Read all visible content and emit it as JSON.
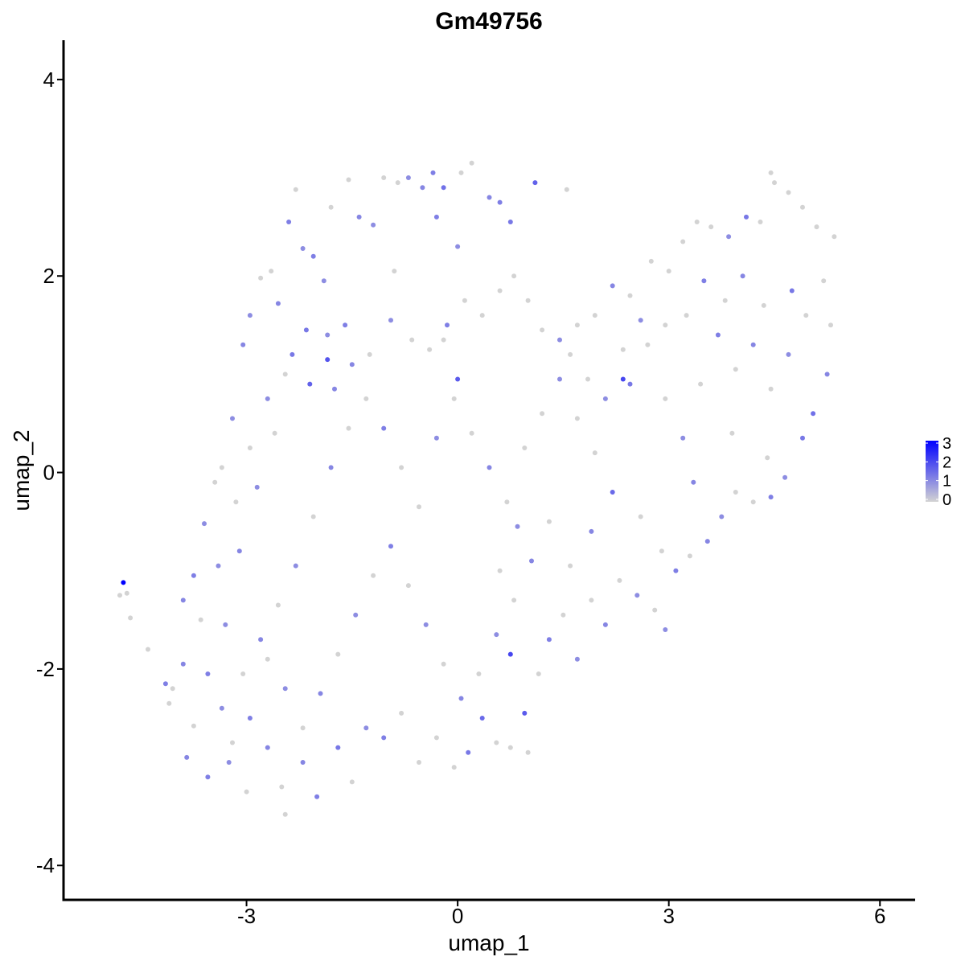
{
  "chart_data": {
    "type": "scatter",
    "title": "Gm49756",
    "xlabel": "umap_1",
    "ylabel": "umap_2",
    "xlim": [
      -5.6,
      6.5
    ],
    "ylim": [
      -4.35,
      4.4
    ],
    "x_ticks": [
      -3,
      0,
      3,
      6
    ],
    "x_tick_labels": [
      "-3",
      "0",
      "3",
      "6"
    ],
    "y_ticks": [
      -4,
      -2,
      0,
      2,
      4
    ],
    "y_tick_labels": [
      "-4",
      "-2",
      "0",
      "2",
      "4"
    ],
    "grid": false,
    "legend": {
      "placement": "right",
      "type": "colorbar",
      "min": 0,
      "max": 3,
      "ticks": [
        0,
        1,
        2,
        3
      ],
      "tick_labels": [
        "0",
        "1",
        "2",
        "3"
      ],
      "low_color": "#d3d3d3",
      "high_color": "#0000ff"
    },
    "points": [
      {
        "x": -4.75,
        "y": -1.12,
        "v": 3.0
      },
      {
        "x": -4.8,
        "y": -1.25,
        "v": 0
      },
      {
        "x": -4.7,
        "y": -1.23,
        "v": 0
      },
      {
        "x": -4.65,
        "y": -1.48,
        "v": 0
      },
      {
        "x": -4.4,
        "y": -1.8,
        "v": 0
      },
      {
        "x": -4.15,
        "y": -2.15,
        "v": 1.2
      },
      {
        "x": -4.05,
        "y": -2.2,
        "v": 0
      },
      {
        "x": -3.9,
        "y": -1.3,
        "v": 1.1
      },
      {
        "x": -3.75,
        "y": -1.05,
        "v": 1.2
      },
      {
        "x": -3.6,
        "y": -0.52,
        "v": 1.0
      },
      {
        "x": -3.45,
        "y": -0.1,
        "v": 0
      },
      {
        "x": -3.35,
        "y": 0.05,
        "v": 0
      },
      {
        "x": -3.2,
        "y": 0.55,
        "v": 1.0
      },
      {
        "x": -3.05,
        "y": 1.3,
        "v": 1.1
      },
      {
        "x": -2.95,
        "y": 1.6,
        "v": 1.0
      },
      {
        "x": -2.8,
        "y": 1.98,
        "v": 0
      },
      {
        "x": -2.65,
        "y": 2.05,
        "v": 0
      },
      {
        "x": -2.55,
        "y": 1.72,
        "v": 1.1
      },
      {
        "x": -2.4,
        "y": 2.55,
        "v": 1.2
      },
      {
        "x": -2.3,
        "y": 2.88,
        "v": 0
      },
      {
        "x": -2.2,
        "y": 2.28,
        "v": 1.0
      },
      {
        "x": -2.05,
        "y": 2.2,
        "v": 1.2
      },
      {
        "x": -1.9,
        "y": 1.95,
        "v": 1.0
      },
      {
        "x": -1.8,
        "y": 2.7,
        "v": 0
      },
      {
        "x": -1.55,
        "y": 2.98,
        "v": 0
      },
      {
        "x": -1.4,
        "y": 2.6,
        "v": 1.1
      },
      {
        "x": -1.2,
        "y": 2.52,
        "v": 1.0
      },
      {
        "x": -1.05,
        "y": 3.0,
        "v": 0
      },
      {
        "x": -0.85,
        "y": 2.95,
        "v": 0
      },
      {
        "x": -0.7,
        "y": 3.0,
        "v": 1.0
      },
      {
        "x": -0.5,
        "y": 2.9,
        "v": 1.1
      },
      {
        "x": -0.35,
        "y": 3.05,
        "v": 1.2
      },
      {
        "x": -0.2,
        "y": 2.9,
        "v": 1.4
      },
      {
        "x": 0.05,
        "y": 3.05,
        "v": 0
      },
      {
        "x": 0.2,
        "y": 3.15,
        "v": 0
      },
      {
        "x": 0.45,
        "y": 2.8,
        "v": 1.1
      },
      {
        "x": 0.6,
        "y": 2.75,
        "v": 1.2
      },
      {
        "x": 0.75,
        "y": 2.55,
        "v": 1.3
      },
      {
        "x": 1.1,
        "y": 2.95,
        "v": 1.6
      },
      {
        "x": 1.55,
        "y": 2.88,
        "v": 0
      },
      {
        "x": 0.0,
        "y": 2.3,
        "v": 1.0
      },
      {
        "x": -0.3,
        "y": 2.6,
        "v": 1.2
      },
      {
        "x": -0.9,
        "y": 2.05,
        "v": 0
      },
      {
        "x": -1.6,
        "y": 1.5,
        "v": 1.2
      },
      {
        "x": -1.75,
        "y": 0.85,
        "v": 1.1
      },
      {
        "x": -2.1,
        "y": 0.9,
        "v": 1.6
      },
      {
        "x": -2.35,
        "y": 1.2,
        "v": 1.3
      },
      {
        "x": -2.6,
        "y": 0.4,
        "v": 0
      },
      {
        "x": -2.85,
        "y": -0.15,
        "v": 1.0
      },
      {
        "x": -3.1,
        "y": -0.8,
        "v": 1.1
      },
      {
        "x": -3.3,
        "y": -1.55,
        "v": 1.0
      },
      {
        "x": -3.55,
        "y": -2.05,
        "v": 1.2
      },
      {
        "x": -3.75,
        "y": -2.58,
        "v": 0
      },
      {
        "x": -3.85,
        "y": -2.9,
        "v": 1.1
      },
      {
        "x": -3.55,
        "y": -3.1,
        "v": 1.2
      },
      {
        "x": -3.25,
        "y": -2.95,
        "v": 1.0
      },
      {
        "x": -3.0,
        "y": -3.25,
        "v": 0
      },
      {
        "x": -2.7,
        "y": -2.8,
        "v": 1.1
      },
      {
        "x": -2.5,
        "y": -3.2,
        "v": 0
      },
      {
        "x": -2.45,
        "y": -3.48,
        "v": 0
      },
      {
        "x": -2.2,
        "y": -2.95,
        "v": 1.1
      },
      {
        "x": -2.0,
        "y": -3.3,
        "v": 1.2
      },
      {
        "x": -1.7,
        "y": -2.8,
        "v": 1.3
      },
      {
        "x": -1.5,
        "y": -3.15,
        "v": 0
      },
      {
        "x": -1.3,
        "y": -2.6,
        "v": 1.0
      },
      {
        "x": -1.05,
        "y": -2.7,
        "v": 1.2
      },
      {
        "x": -0.8,
        "y": -2.45,
        "v": 0
      },
      {
        "x": -0.55,
        "y": -2.95,
        "v": 0
      },
      {
        "x": -0.3,
        "y": -2.7,
        "v": 0
      },
      {
        "x": -0.05,
        "y": -3.0,
        "v": 0
      },
      {
        "x": 0.15,
        "y": -2.85,
        "v": 1.3
      },
      {
        "x": 0.35,
        "y": -2.5,
        "v": 1.5
      },
      {
        "x": 0.55,
        "y": -2.75,
        "v": 0
      },
      {
        "x": 0.75,
        "y": -2.8,
        "v": 0
      },
      {
        "x": 0.95,
        "y": -2.45,
        "v": 1.7
      },
      {
        "x": 1.0,
        "y": -2.85,
        "v": 0
      },
      {
        "x": 1.15,
        "y": -2.05,
        "v": 0
      },
      {
        "x": 1.3,
        "y": -1.7,
        "v": 1.2
      },
      {
        "x": 1.5,
        "y": -1.45,
        "v": 0
      },
      {
        "x": 1.7,
        "y": -1.9,
        "v": 1.0
      },
      {
        "x": 1.9,
        "y": -1.3,
        "v": 0
      },
      {
        "x": 2.1,
        "y": -1.55,
        "v": 1.1
      },
      {
        "x": 2.3,
        "y": -1.1,
        "v": 0
      },
      {
        "x": 2.55,
        "y": -1.25,
        "v": 1.0
      },
      {
        "x": 2.8,
        "y": -1.4,
        "v": 0
      },
      {
        "x": 2.95,
        "y": -1.6,
        "v": 1.0
      },
      {
        "x": 3.1,
        "y": -1.0,
        "v": 1.2
      },
      {
        "x": 3.3,
        "y": -0.85,
        "v": 0
      },
      {
        "x": 3.55,
        "y": -0.7,
        "v": 1.1
      },
      {
        "x": 3.75,
        "y": -0.45,
        "v": 1.0
      },
      {
        "x": 3.95,
        "y": -0.2,
        "v": 0
      },
      {
        "x": 4.2,
        "y": -0.3,
        "v": 0
      },
      {
        "x": 4.45,
        "y": -0.25,
        "v": 1.2
      },
      {
        "x": 4.65,
        "y": -0.05,
        "v": 1.0
      },
      {
        "x": 4.9,
        "y": 0.35,
        "v": 1.3
      },
      {
        "x": 5.05,
        "y": 0.6,
        "v": 1.4
      },
      {
        "x": 5.25,
        "y": 1.0,
        "v": 1.1
      },
      {
        "x": 5.3,
        "y": 1.5,
        "v": 0
      },
      {
        "x": 5.2,
        "y": 1.95,
        "v": 0
      },
      {
        "x": 5.35,
        "y": 2.4,
        "v": 0
      },
      {
        "x": 5.1,
        "y": 2.5,
        "v": 0
      },
      {
        "x": 4.9,
        "y": 2.7,
        "v": 0
      },
      {
        "x": 4.7,
        "y": 2.85,
        "v": 0
      },
      {
        "x": 4.5,
        "y": 2.95,
        "v": 0
      },
      {
        "x": 4.45,
        "y": 3.05,
        "v": 0
      },
      {
        "x": 4.3,
        "y": 2.55,
        "v": 0
      },
      {
        "x": 4.1,
        "y": 2.6,
        "v": 1.3
      },
      {
        "x": 3.85,
        "y": 2.4,
        "v": 1.0
      },
      {
        "x": 3.6,
        "y": 2.5,
        "v": 0
      },
      {
        "x": 3.4,
        "y": 2.55,
        "v": 0
      },
      {
        "x": 3.2,
        "y": 2.35,
        "v": 0
      },
      {
        "x": 3.0,
        "y": 2.05,
        "v": 0
      },
      {
        "x": 2.75,
        "y": 2.15,
        "v": 0
      },
      {
        "x": 2.45,
        "y": 1.8,
        "v": 0
      },
      {
        "x": 2.2,
        "y": 1.9,
        "v": 1.1
      },
      {
        "x": 1.95,
        "y": 1.6,
        "v": 0
      },
      {
        "x": 1.7,
        "y": 1.5,
        "v": 0
      },
      {
        "x": 1.45,
        "y": 1.35,
        "v": 1.0
      },
      {
        "x": 1.2,
        "y": 1.45,
        "v": 0
      },
      {
        "x": 1.0,
        "y": 1.75,
        "v": 0
      },
      {
        "x": 0.8,
        "y": 2.0,
        "v": 0
      },
      {
        "x": 0.6,
        "y": 1.85,
        "v": 0
      },
      {
        "x": 0.35,
        "y": 1.6,
        "v": 0
      },
      {
        "x": 0.1,
        "y": 1.75,
        "v": 0
      },
      {
        "x": -0.15,
        "y": 1.5,
        "v": 1.2
      },
      {
        "x": -0.4,
        "y": 1.25,
        "v": 0
      },
      {
        "x": -0.65,
        "y": 1.35,
        "v": 0
      },
      {
        "x": -0.95,
        "y": 1.55,
        "v": 1.0
      },
      {
        "x": -1.25,
        "y": 1.2,
        "v": 0
      },
      {
        "x": -1.5,
        "y": 1.1,
        "v": 1.1
      },
      {
        "x": -1.85,
        "y": 1.4,
        "v": 1.0
      },
      {
        "x": -2.15,
        "y": 1.45,
        "v": 1.3
      },
      {
        "x": -2.45,
        "y": 1.0,
        "v": 0
      },
      {
        "x": -2.7,
        "y": 0.75,
        "v": 1.0
      },
      {
        "x": -2.95,
        "y": 0.25,
        "v": 0
      },
      {
        "x": -3.15,
        "y": -0.3,
        "v": 0
      },
      {
        "x": -3.4,
        "y": -0.95,
        "v": 1.0
      },
      {
        "x": -3.65,
        "y": -1.5,
        "v": 0
      },
      {
        "x": -3.9,
        "y": -1.95,
        "v": 1.1
      },
      {
        "x": -4.1,
        "y": -2.35,
        "v": 0
      },
      {
        "x": -3.35,
        "y": -2.4,
        "v": 1.0
      },
      {
        "x": -3.05,
        "y": -2.05,
        "v": 0
      },
      {
        "x": -2.8,
        "y": -1.7,
        "v": 1.1
      },
      {
        "x": -2.55,
        "y": -1.35,
        "v": 0
      },
      {
        "x": -2.3,
        "y": -0.95,
        "v": 1.0
      },
      {
        "x": -2.05,
        "y": -0.45,
        "v": 0
      },
      {
        "x": -1.8,
        "y": 0.05,
        "v": 1.1
      },
      {
        "x": -1.55,
        "y": 0.45,
        "v": 0
      },
      {
        "x": -1.3,
        "y": 0.75,
        "v": 0
      },
      {
        "x": -1.05,
        "y": 0.45,
        "v": 1.2
      },
      {
        "x": -0.8,
        "y": 0.05,
        "v": 0
      },
      {
        "x": -0.55,
        "y": -0.35,
        "v": 0
      },
      {
        "x": -0.3,
        "y": 0.35,
        "v": 1.0
      },
      {
        "x": -0.05,
        "y": 0.75,
        "v": 0
      },
      {
        "x": 0.2,
        "y": 0.4,
        "v": 0
      },
      {
        "x": 0.45,
        "y": 0.05,
        "v": 1.1
      },
      {
        "x": 0.7,
        "y": -0.3,
        "v": 0
      },
      {
        "x": 0.95,
        "y": 0.25,
        "v": 0
      },
      {
        "x": 1.2,
        "y": 0.6,
        "v": 0
      },
      {
        "x": 1.45,
        "y": 0.95,
        "v": 1.0
      },
      {
        "x": 1.7,
        "y": 0.55,
        "v": 0
      },
      {
        "x": 1.95,
        "y": 0.2,
        "v": 0
      },
      {
        "x": 2.2,
        "y": -0.2,
        "v": 1.5
      },
      {
        "x": 2.45,
        "y": 0.9,
        "v": 1.3
      },
      {
        "x": 2.7,
        "y": 1.3,
        "v": 0
      },
      {
        "x": 2.95,
        "y": 0.75,
        "v": 0
      },
      {
        "x": 3.2,
        "y": 0.35,
        "v": 1.0
      },
      {
        "x": 3.45,
        "y": 0.9,
        "v": 0
      },
      {
        "x": 3.7,
        "y": 1.4,
        "v": 1.2
      },
      {
        "x": 3.95,
        "y": 1.05,
        "v": 0
      },
      {
        "x": 4.2,
        "y": 1.3,
        "v": 1.1
      },
      {
        "x": 4.45,
        "y": 0.85,
        "v": 0
      },
      {
        "x": 4.7,
        "y": 1.2,
        "v": 1.0
      },
      {
        "x": 4.95,
        "y": 1.6,
        "v": 0
      },
      {
        "x": 4.75,
        "y": 1.85,
        "v": 1.3
      },
      {
        "x": 4.35,
        "y": 1.7,
        "v": 0
      },
      {
        "x": 4.05,
        "y": 2.0,
        "v": 1.1
      },
      {
        "x": 3.8,
        "y": 1.75,
        "v": 0
      },
      {
        "x": 3.5,
        "y": 1.95,
        "v": 1.2
      },
      {
        "x": 3.25,
        "y": 1.6,
        "v": 0
      },
      {
        "x": 2.95,
        "y": 1.5,
        "v": 0
      },
      {
        "x": 2.6,
        "y": 1.55,
        "v": 1.0
      },
      {
        "x": 2.35,
        "y": 1.25,
        "v": 0
      },
      {
        "x": 2.1,
        "y": 0.75,
        "v": 1.0
      },
      {
        "x": 1.85,
        "y": 0.95,
        "v": 0
      },
      {
        "x": 1.6,
        "y": 1.2,
        "v": 0
      },
      {
        "x": 1.3,
        "y": -0.5,
        "v": 0
      },
      {
        "x": 1.05,
        "y": -0.9,
        "v": 1.1
      },
      {
        "x": 0.8,
        "y": -1.3,
        "v": 0
      },
      {
        "x": 0.55,
        "y": -1.65,
        "v": 1.0
      },
      {
        "x": 0.3,
        "y": -2.05,
        "v": 0
      },
      {
        "x": 0.05,
        "y": -2.3,
        "v": 1.1
      },
      {
        "x": -0.2,
        "y": -1.95,
        "v": 0
      },
      {
        "x": -0.45,
        "y": -1.55,
        "v": 1.0
      },
      {
        "x": -0.7,
        "y": -1.15,
        "v": 0
      },
      {
        "x": -0.95,
        "y": -0.75,
        "v": 1.2
      },
      {
        "x": -1.2,
        "y": -1.05,
        "v": 0
      },
      {
        "x": -1.45,
        "y": -1.45,
        "v": 1.0
      },
      {
        "x": -1.7,
        "y": -1.85,
        "v": 0
      },
      {
        "x": -1.95,
        "y": -2.25,
        "v": 1.1
      },
      {
        "x": -2.2,
        "y": -2.6,
        "v": 0
      },
      {
        "x": -2.45,
        "y": -2.2,
        "v": 1.0
      },
      {
        "x": -2.7,
        "y": -1.9,
        "v": 0
      },
      {
        "x": -2.95,
        "y": -2.5,
        "v": 1.2
      },
      {
        "x": -3.2,
        "y": -2.75,
        "v": 0
      },
      {
        "x": 0.6,
        "y": -1.0,
        "v": 0
      },
      {
        "x": 0.85,
        "y": -0.55,
        "v": 1.0
      },
      {
        "x": 1.6,
        "y": -0.95,
        "v": 0
      },
      {
        "x": 1.9,
        "y": -0.6,
        "v": 1.1
      },
      {
        "x": 2.6,
        "y": -0.45,
        "v": 0
      },
      {
        "x": 2.9,
        "y": -0.8,
        "v": 0
      },
      {
        "x": 3.35,
        "y": -0.1,
        "v": 1.1
      },
      {
        "x": 3.9,
        "y": 0.4,
        "v": 0
      },
      {
        "x": 4.4,
        "y": 0.15,
        "v": 0
      },
      {
        "x": 0.75,
        "y": -1.85,
        "v": 2.0
      },
      {
        "x": 2.35,
        "y": 0.95,
        "v": 2.0
      },
      {
        "x": -1.85,
        "y": 1.15,
        "v": 1.8
      },
      {
        "x": -0.2,
        "y": 1.35,
        "v": 0
      },
      {
        "x": 0.0,
        "y": 0.95,
        "v": 1.7
      }
    ]
  }
}
